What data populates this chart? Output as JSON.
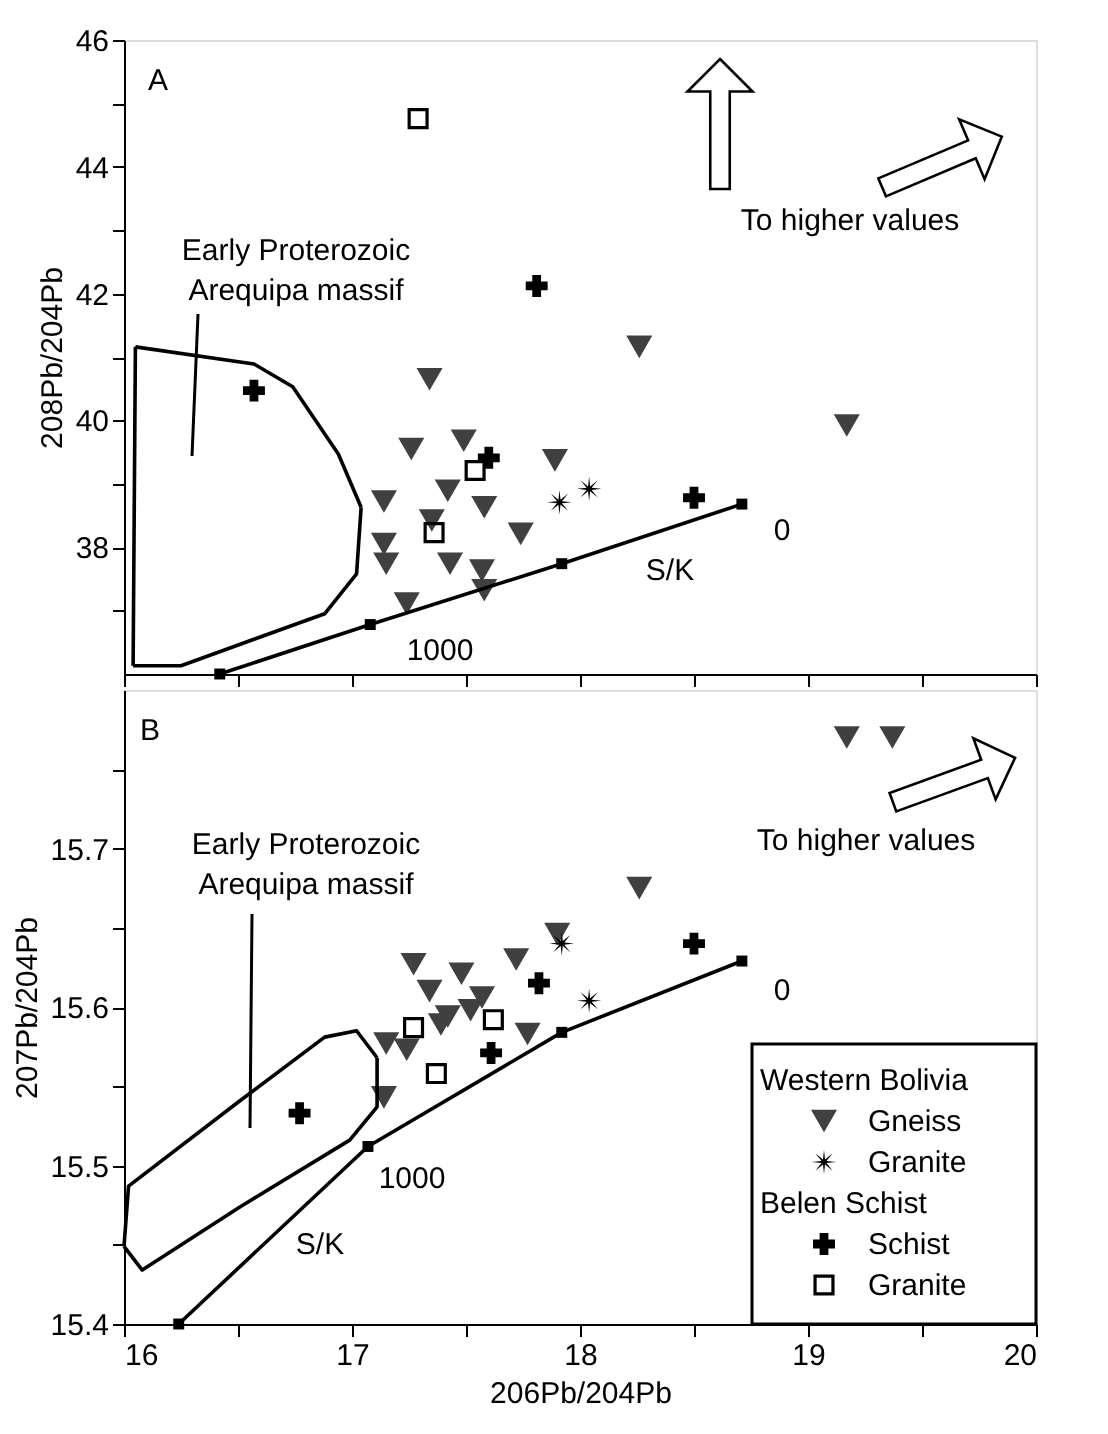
{
  "chart_data": [
    {
      "type": "scatter",
      "ylabel": "208Pb/204Pb",
      "xlim": [
        16,
        20
      ],
      "ylim": [
        36,
        46
      ],
      "tick_labels": "y",
      "xticks": [
        16,
        {
          "value": 16.5,
          "label": null
        },
        17,
        {
          "value": 17.5,
          "label": null
        },
        18,
        {
          "value": 18.5,
          "label": null
        },
        19,
        {
          "value": 19.5,
          "label": null
        },
        20
      ],
      "yticks": [
        {
          "value": 37,
          "label": null
        },
        38,
        {
          "value": 39,
          "label": null
        },
        40,
        {
          "value": 41,
          "label": null
        },
        42,
        {
          "value": 43,
          "label": null
        },
        44,
        {
          "value": 45,
          "label": null
        },
        46
      ],
      "series": [
        {
          "color": "#404040",
          "marker": "triangle",
          "x": [
            17.34,
            18.26,
            19.17,
            17.26,
            17.49,
            17.89,
            17.14,
            17.42,
            17.58,
            17.35,
            17.14,
            17.15,
            17.74,
            17.43,
            17.57,
            17.58,
            17.24
          ],
          "values": [
            40.65,
            41.16,
            39.92,
            39.55,
            39.68,
            39.37,
            38.72,
            38.89,
            38.63,
            38.42,
            38.05,
            37.74,
            38.21,
            37.74,
            37.63,
            37.32,
            37.11
          ]
        },
        {
          "color": "#000000",
          "marker": "star",
          "x": [
            17.91,
            18.04
          ],
          "values": [
            38.71,
            38.92
          ]
        },
        {
          "color": "#000000",
          "marker": "cross",
          "x": [
            16.57,
            17.81,
            17.6,
            18.5
          ],
          "values": [
            40.47,
            42.12,
            39.41,
            38.78
          ]
        },
        {
          "color": "#000000",
          "marker": "square",
          "x": [
            17.29,
            17.54,
            17.36
          ],
          "values": [
            44.76,
            39.21,
            38.23
          ]
        },
        {
          "type": "line",
          "color": "#000000",
          "marker": "square",
          "x": [
            16.42,
            17.08,
            17.92,
            18.71
          ],
          "values": [
            36.0,
            36.78,
            37.74,
            38.68
          ]
        },
        {
          "type": "line",
          "color": "#000000",
          "x": [
            16.05,
            16.57,
            16.74,
            16.94,
            17.04
          ],
          "values": [
            41.16,
            40.89,
            40.53,
            39.47,
            38.63
          ]
        },
        {
          "type": "line",
          "color": "#000000",
          "x": [
            16.04,
            16.25,
            16.51,
            16.88,
            17.02,
            17.04
          ],
          "values": [
            36.13,
            36.13,
            36.47,
            36.95,
            37.58,
            38.63
          ]
        },
        {
          "type": "line",
          "color": "#000000",
          "x": [
            16.04,
            16.05
          ],
          "values": [
            36.13,
            41.16
          ]
        }
      ],
      "annotations": [
        "A",
        "To higher values",
        "Early Proterozoic\nArequipa massif",
        "0",
        "1000",
        "S/K"
      ]
    },
    {
      "type": "scatter",
      "xlabel": "206Pb/204Pb",
      "ylabel": "207Pb/204Pb",
      "xlim": [
        16,
        20
      ],
      "ylim": [
        15.4,
        15.8
      ],
      "legend": "bottom right",
      "xticks": [
        16,
        {
          "value": 16.5,
          "label": null
        },
        17,
        {
          "value": 17.5,
          "label": null
        },
        18,
        {
          "value": 18.5,
          "label": null
        },
        19,
        {
          "value": 19.5,
          "label": null
        },
        20
      ],
      "yticks": [
        15.4,
        {
          "value": 15.45,
          "label": null
        },
        15.5,
        {
          "value": 15.55,
          "label": null
        },
        15.6,
        {
          "value": 15.65,
          "label": null
        },
        15.7,
        {
          "value": 15.75,
          "label": null
        }
      ],
      "series": [
        {
          "name": "Gneiss",
          "color": "#404040",
          "marker": "triangle",
          "x": [
            19.17,
            19.37,
            18.26,
            17.9,
            17.27,
            17.48,
            17.72,
            17.34,
            17.57,
            17.42,
            17.52,
            17.77,
            17.15,
            17.24,
            17.39,
            17.14
          ],
          "values": [
            15.77,
            15.77,
            15.675,
            15.646,
            15.627,
            15.621,
            15.63,
            15.61,
            15.606,
            15.594,
            15.598,
            15.583,
            15.577,
            15.573,
            15.589,
            15.543
          ]
        },
        {
          "name": "Granite",
          "color": "#000000",
          "marker": "star",
          "x": [
            17.92,
            18.04
          ],
          "values": [
            15.64,
            15.604
          ]
        },
        {
          "name": "Schist",
          "color": "#000000",
          "marker": "cross",
          "x": [
            16.77,
            18.5,
            17.82,
            17.61
          ],
          "values": [
            15.533,
            15.64,
            15.615,
            15.571
          ]
        },
        {
          "name": "Granite",
          "color": "#000000",
          "marker": "square",
          "x": [
            17.37,
            17.62,
            17.27
          ],
          "values": [
            15.558,
            15.592,
            15.587
          ]
        },
        {
          "type": "line",
          "color": "#000000",
          "marker": "square",
          "x": [
            16.24,
            17.07,
            17.92,
            18.71
          ],
          "values": [
            15.4,
            15.512,
            15.584,
            15.629
          ]
        },
        {
          "type": "line",
          "color": "#000000",
          "x": [
            16.0,
            16.02,
            16.51,
            16.88,
            17.02,
            17.11
          ],
          "values": [
            15.449,
            15.487,
            15.541,
            15.581,
            15.585,
            15.568
          ]
        },
        {
          "type": "line",
          "color": "#000000",
          "x": [
            16.0,
            16.08,
            16.51,
            16.99,
            17.11,
            17.11
          ],
          "values": [
            15.449,
            15.434,
            15.474,
            15.516,
            15.537,
            15.568
          ]
        }
      ],
      "annotations": [
        "B",
        "To higher values",
        "Early Proterozoic\nArequipa massif",
        "0",
        "1000",
        "S/K",
        "Western Bolivia",
        "Belen Schist"
      ]
    }
  ]
}
